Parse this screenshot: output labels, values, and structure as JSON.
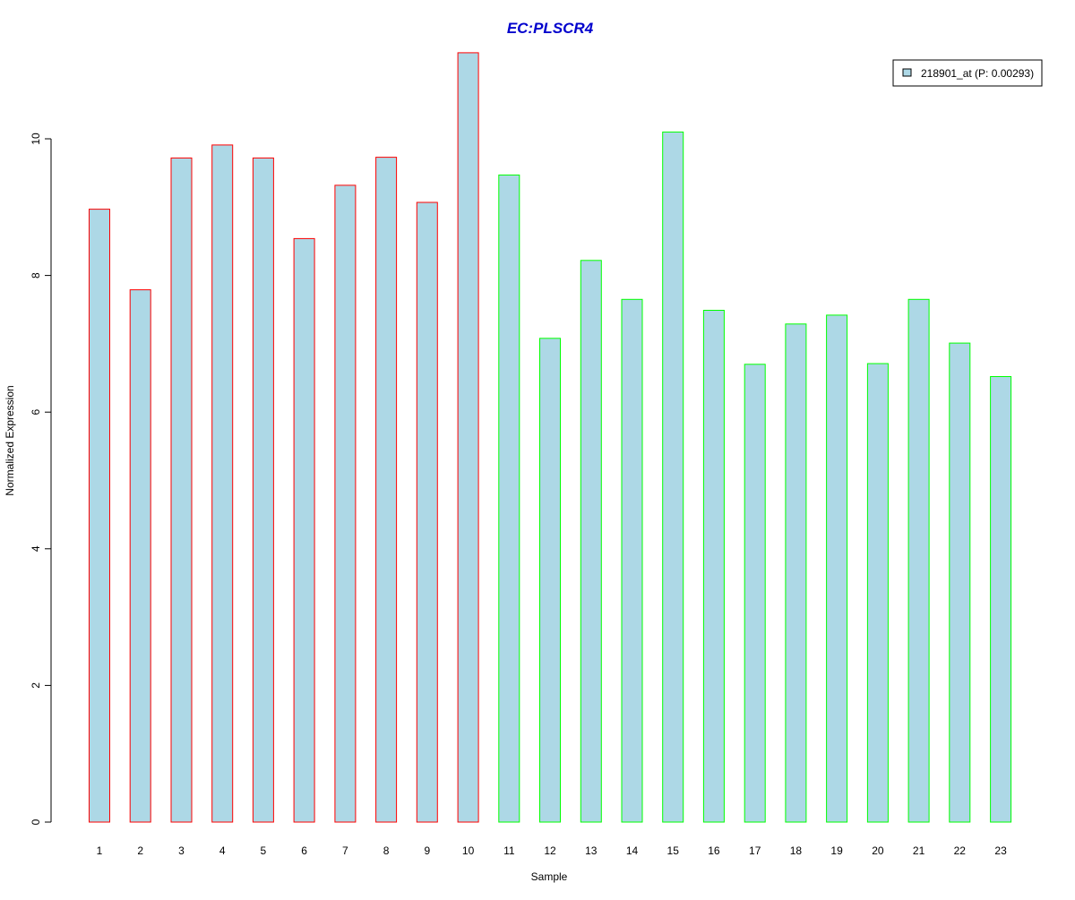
{
  "chart_data": {
    "type": "bar",
    "title": "EC:PLSCR4",
    "xlabel": "Sample",
    "ylabel": "Normalized Expression",
    "categories": [
      "1",
      "2",
      "3",
      "4",
      "5",
      "6",
      "7",
      "8",
      "9",
      "10",
      "11",
      "12",
      "13",
      "14",
      "15",
      "16",
      "17",
      "18",
      "19",
      "20",
      "21",
      "22",
      "23"
    ],
    "series": [
      {
        "name": "218901_at (P: 0.00293)",
        "values": [
          8.97,
          7.79,
          9.72,
          9.91,
          9.72,
          8.54,
          9.32,
          9.73,
          9.07,
          11.26,
          9.47,
          7.08,
          8.22,
          7.65,
          10.1,
          7.49,
          6.7,
          7.29,
          7.42,
          6.71,
          7.65,
          7.01,
          6.52
        ]
      }
    ],
    "bar_fill": "#add8e6",
    "bar_border_colors": [
      "#ff0000",
      "#ff0000",
      "#ff0000",
      "#ff0000",
      "#ff0000",
      "#ff0000",
      "#ff0000",
      "#ff0000",
      "#ff0000",
      "#ff0000",
      "#00ff00",
      "#00ff00",
      "#00ff00",
      "#00ff00",
      "#00ff00",
      "#00ff00",
      "#00ff00",
      "#00ff00",
      "#00ff00",
      "#00ff00",
      "#00ff00",
      "#00ff00",
      "#00ff00"
    ],
    "title_color": "#0000cd",
    "ylim": [
      0,
      11.26
    ],
    "yticks": [
      0,
      2,
      4,
      6,
      8,
      10
    ],
    "grid": false,
    "legend_position": "top-right"
  }
}
